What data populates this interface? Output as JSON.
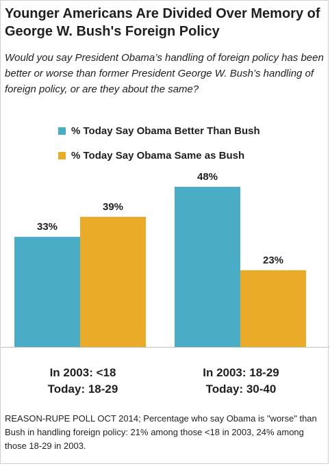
{
  "title": "Younger Americans Are Divided Over Memory of George W. Bush's Foreign Policy",
  "subtitle": "Would you say President Obama’s handling of foreign policy has been better or worse than former President George W. Bush’s handling of foreign policy, or are they about the same?",
  "footnote": "REASON-RUPE POLL OCT 2014; Percentage who say Obama is \"worse\" than Bush in handling foreign policy: 21% among those <18 in 2003, 24% among those 18-29 in 2003.",
  "chart_data": {
    "type": "bar",
    "title": "Younger Americans Are Divided Over Memory of George W. Bush's Foreign Policy",
    "categories": [
      [
        "In 2003: <18",
        "Today: 18-29"
      ],
      [
        "In 2003: 18-29",
        "Today: 30-40"
      ]
    ],
    "series": [
      {
        "name": "% Today Say Obama Better Than Bush",
        "color": "#4BACC6",
        "values": [
          33,
          48
        ],
        "labels": [
          "33%",
          "48%"
        ]
      },
      {
        "name": "% Today Say Obama Same as Bush",
        "color": "#EAAB28",
        "values": [
          39,
          23
        ],
        "labels": [
          "39%",
          "23%"
        ]
      }
    ],
    "ylim": [
      0,
      48
    ],
    "grid": false,
    "legend": "top",
    "xlabel": "",
    "ylabel": ""
  }
}
